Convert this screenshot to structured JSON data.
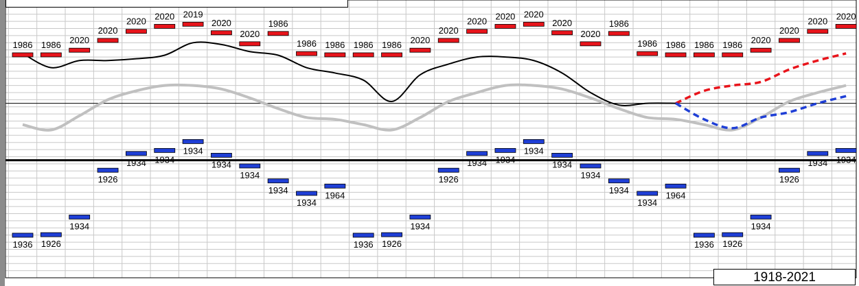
{
  "chart_data": {
    "type": "line",
    "title": "",
    "range_label": "1918-2021",
    "colors": {
      "high_marker": "#e8141b",
      "low_marker": "#1f3fd6",
      "main_line": "#000000",
      "normal_line": "#c0c0c0",
      "forecast_high": "#e8141b",
      "forecast_low": "#1f3fd6",
      "grid": "#c8c8c8"
    },
    "x": [
      1,
      2,
      3,
      4,
      5,
      6,
      7,
      8,
      9,
      10,
      11,
      12,
      13,
      14,
      15,
      16,
      17,
      18,
      19,
      20,
      21,
      22,
      23,
      24,
      25,
      26,
      27,
      28,
      29,
      30
    ],
    "high_markers": {
      "values": [
        59.2,
        59.2,
        61.8,
        67.3,
        72.4,
        75.2,
        76.4,
        71.6,
        65.4,
        71.2,
        59.9,
        59.2,
        59.2,
        59.2,
        61.8,
        67.3,
        72.4,
        75.2,
        76.4,
        71.6,
        65.4,
        71.2,
        59.9,
        59.2,
        59.2,
        59.2,
        61.8,
        67.3,
        72.4,
        75.2
      ],
      "years": [
        "1986",
        "1986",
        "2020",
        "2020",
        "2020",
        "2020",
        "2019",
        "2020",
        "2020",
        "1986",
        "1986",
        "1986",
        "1986",
        "1986",
        "2020",
        "2020",
        "2020",
        "2020",
        "2020",
        "2020",
        "2020",
        "1986",
        "1986",
        "1986",
        "1986",
        "1986",
        "2020",
        "2020",
        "2020",
        "2020"
      ]
    },
    "low_markers": {
      "values": [
        -42.1,
        -41.8,
        -31.9,
        -5.6,
        3.8,
        5.5,
        10.5,
        2.8,
        -3.2,
        -11.6,
        -18.6,
        -14.5,
        -42.1,
        -41.8,
        -31.9,
        -5.6,
        3.8,
        5.5,
        10.5,
        2.8,
        -3.2,
        -11.6,
        -18.6,
        -14.5,
        -42.1,
        -41.8,
        -31.9,
        -5.6,
        3.8,
        5.5
      ],
      "years": [
        "1936",
        "1926",
        "1934",
        "1926",
        "1934",
        "1934",
        "1934",
        "1934",
        "1934",
        "1934",
        "1934",
        "1964",
        "1936",
        "1926",
        "1934",
        "1926",
        "1934",
        "1934",
        "1934",
        "1934",
        "1934",
        "1934",
        "1934",
        "1964",
        "1936",
        "1926",
        "1934",
        "1926",
        "1934",
        "1934"
      ]
    },
    "series": [
      {
        "key": "actual",
        "x": [
          1,
          2,
          3,
          4,
          5,
          6,
          7,
          8,
          9,
          10,
          11,
          12,
          13,
          14,
          15,
          16,
          17,
          18,
          19,
          20,
          21,
          22,
          23,
          24
        ],
        "values": [
          60,
          52,
          56,
          56,
          57,
          59,
          66,
          65,
          61,
          59,
          52,
          49,
          45,
          33,
          48,
          54,
          58,
          58,
          56,
          49,
          38,
          31,
          32,
          32
        ]
      },
      {
        "key": "normal",
        "x": [
          1,
          2,
          3,
          4,
          5,
          6,
          7,
          8,
          9,
          10,
          11,
          12,
          13,
          14,
          15,
          16,
          17,
          18,
          19,
          20,
          21,
          22,
          23,
          24,
          25,
          26,
          27,
          28,
          29,
          30
        ],
        "values": [
          20,
          17,
          25,
          34,
          39,
          42,
          42,
          40,
          35,
          29,
          24,
          23,
          20,
          17,
          24,
          33,
          38,
          42,
          42,
          40,
          35,
          29,
          24,
          23,
          20,
          17,
          24,
          33,
          38,
          42
        ]
      },
      {
        "key": "forecast_high",
        "x": [
          24,
          25,
          26,
          27,
          28,
          29,
          30
        ],
        "values": [
          32,
          39,
          42,
          44,
          51,
          56,
          60
        ]
      },
      {
        "key": "forecast_low",
        "x": [
          24,
          25,
          26,
          27,
          28,
          29,
          30
        ],
        "values": [
          32,
          23,
          18,
          24,
          27,
          32,
          36
        ]
      }
    ],
    "ylim": [
      -66,
      90
    ],
    "grid": true,
    "legend": "none"
  }
}
